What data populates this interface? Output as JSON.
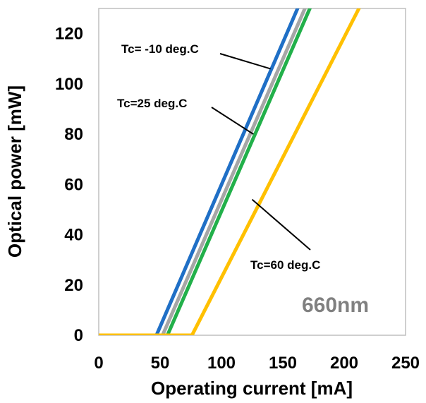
{
  "chart_data": {
    "type": "line",
    "xlabel": "Operating current [mA]",
    "ylabel": "Optical power [mW]",
    "xlim": [
      0,
      250
    ],
    "ylim": [
      0,
      130
    ],
    "xticks": [
      0,
      50,
      100,
      150,
      200,
      250
    ],
    "yticks": [
      0,
      20,
      40,
      60,
      80,
      100,
      120
    ],
    "grid": false,
    "wavelength_label": "660nm",
    "series": [
      {
        "name": "Tc= -10 deg.C",
        "color": "#1f6fc6",
        "x": [
          0,
          47,
          162
        ],
        "y": [
          0,
          0,
          130
        ]
      },
      {
        "name": "",
        "color": "#a6a6a6",
        "x": [
          0,
          52,
          168
        ],
        "y": [
          0,
          0,
          130
        ]
      },
      {
        "name": "Tc=25 deg.C",
        "color": "#22b04a",
        "x": [
          0,
          56,
          172
        ],
        "y": [
          0,
          0,
          130
        ]
      },
      {
        "name": "Tc=60 deg.C",
        "color": "#ffc000",
        "x": [
          0,
          76,
          212
        ],
        "y": [
          0,
          0,
          130
        ]
      }
    ],
    "annotations": [
      {
        "text": "Tc= -10 deg.C",
        "series_index": 0,
        "point": [
          140,
          106
        ]
      },
      {
        "text": "Tc=25 deg.C",
        "series_index": 2,
        "point": [
          126,
          80
        ]
      },
      {
        "text": "Tc=60 deg.C",
        "series_index": 3,
        "point": [
          125,
          54
        ]
      }
    ]
  }
}
